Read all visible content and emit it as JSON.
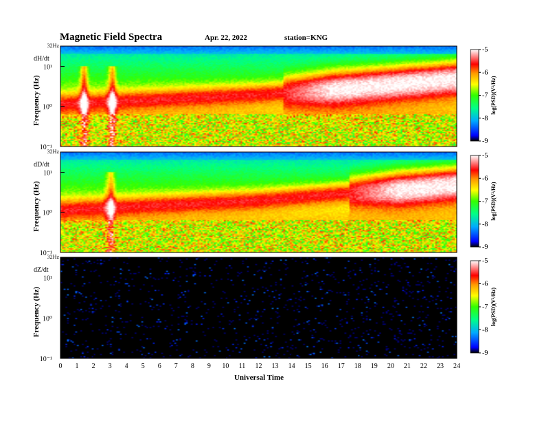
{
  "header": {
    "title": "Magnetic  Field  Spectra",
    "date": "Apr. 22, 2022",
    "station": "station=KNG"
  },
  "chart_data": [
    {
      "type": "heatmap",
      "component": "dH/dt",
      "ylabel": "Frequency  (Hz)",
      "y_scale": "log",
      "ylim": [
        0.1,
        32
      ],
      "y_top_label": "32Hz",
      "y_ticks": [
        "10¹",
        "10⁰",
        "10⁻¹"
      ],
      "xlim": [
        0,
        24
      ],
      "colorbar": {
        "label": "log(PSD)(V²/Hz)",
        "range": [
          -9,
          -5
        ],
        "ticks": [
          "-5",
          "-6",
          "-7",
          "-8",
          "-9"
        ]
      },
      "features": {
        "pc_event_hours": [
          1.4,
          3.1
        ],
        "white_band_start_hour": 13.5
      }
    },
    {
      "type": "heatmap",
      "component": "dD/dt",
      "ylabel": "Frequency  (Hz)",
      "y_scale": "log",
      "ylim": [
        0.1,
        32
      ],
      "y_top_label": "32Hz",
      "y_ticks": [
        "10¹",
        "10⁰",
        "10⁻¹"
      ],
      "xlim": [
        0,
        24
      ],
      "colorbar": {
        "label": "log(PSD)(V²/Hz)",
        "range": [
          -9,
          -5
        ],
        "ticks": [
          "-5",
          "-6",
          "-7",
          "-8",
          "-9"
        ]
      },
      "features": {
        "pc_event_hours": [
          3.0
        ],
        "white_band_start_hour": 17.5
      }
    },
    {
      "type": "heatmap",
      "component": "dZ/dt",
      "ylabel": "Frequency  (Hz)",
      "y_scale": "log",
      "ylim": [
        0.1,
        32
      ],
      "y_top_label": "32Hz",
      "y_ticks": [
        "10¹",
        "10⁰",
        "10⁻¹"
      ],
      "xlim": [
        0,
        24
      ],
      "colorbar": {
        "label": "log(PSD)(V²/Hz)",
        "range": [
          -9,
          -5
        ],
        "ticks": [
          "-5",
          "-6",
          "-7",
          "-8",
          "-9"
        ]
      },
      "features": {
        "mostly_empty": true
      }
    }
  ],
  "xaxis": {
    "label": "Universal Time",
    "ticks": [
      "0",
      "1",
      "2",
      "3",
      "4",
      "5",
      "6",
      "7",
      "8",
      "9",
      "10",
      "11",
      "12",
      "13",
      "14",
      "15",
      "16",
      "17",
      "18",
      "19",
      "20",
      "21",
      "22",
      "23",
      "24"
    ]
  },
  "colors": {
    "background": "#ffffff",
    "empty_panel": "#000000"
  }
}
